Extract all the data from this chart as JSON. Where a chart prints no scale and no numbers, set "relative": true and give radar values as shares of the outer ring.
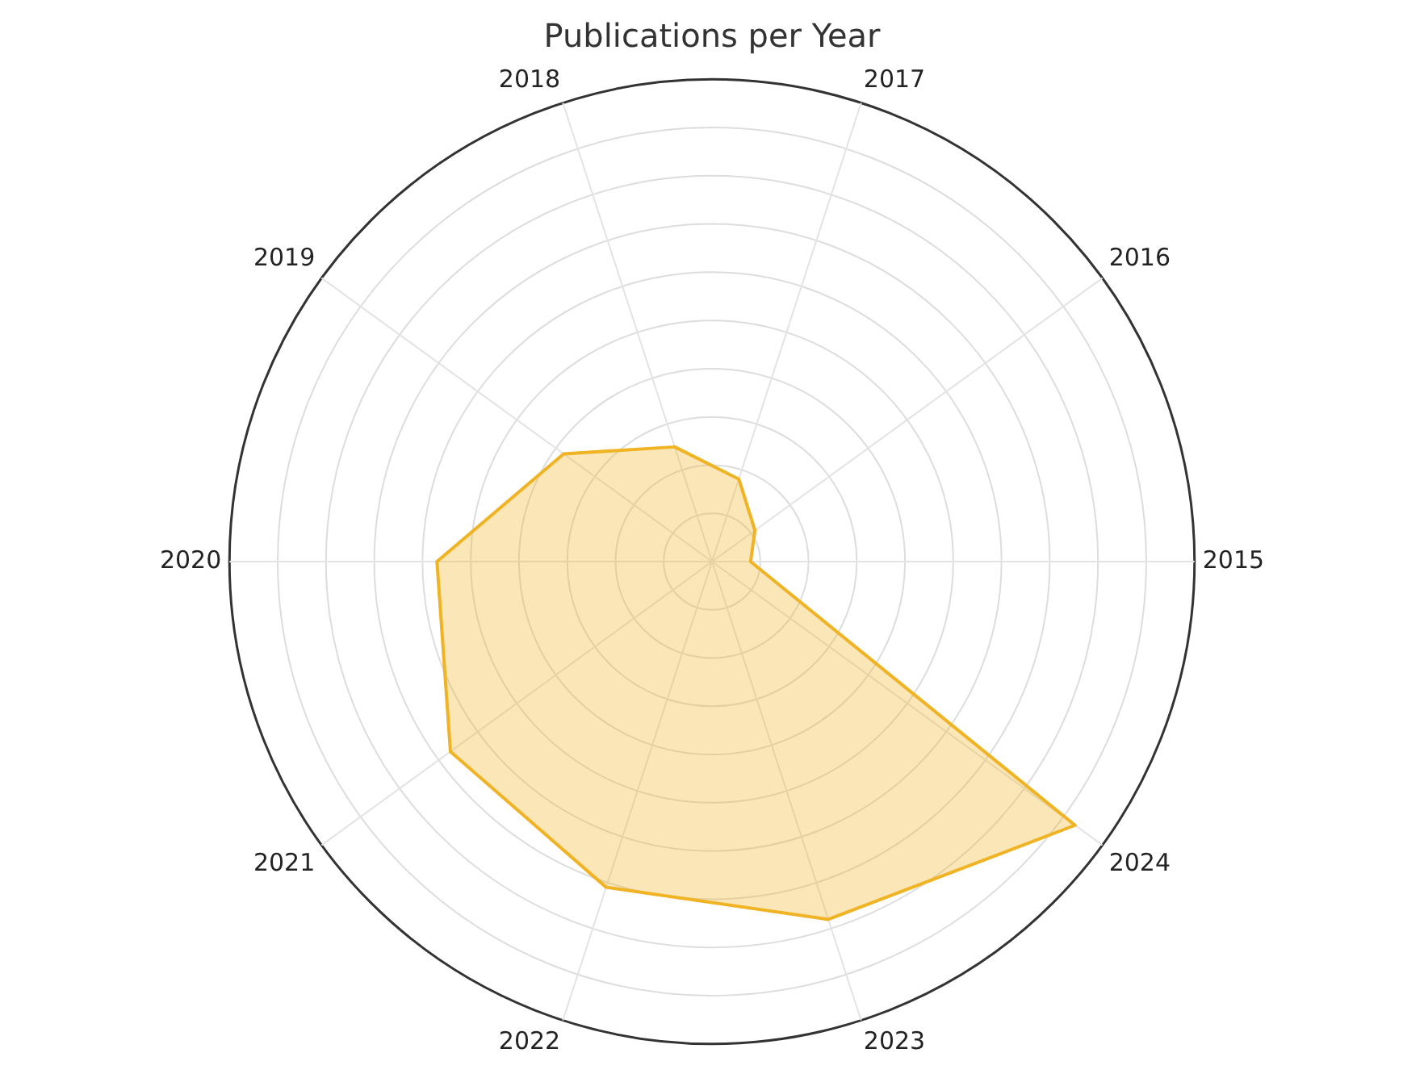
{
  "chart_data": {
    "type": "radar",
    "title": "Publications per Year",
    "relative": true,
    "grid": true,
    "legend": false,
    "marker": "none",
    "categories": [
      "2017",
      "2016",
      "2015",
      "2024",
      "2023",
      "2022",
      "2021",
      "2020",
      "2019",
      "2018"
    ],
    "series": [
      {
        "color": "#f0b323",
        "values": [
          0.18,
          0.11,
          0.08,
          0.93,
          0.78,
          0.71,
          0.67,
          0.57,
          0.38,
          0.25
        ]
      }
    ]
  }
}
